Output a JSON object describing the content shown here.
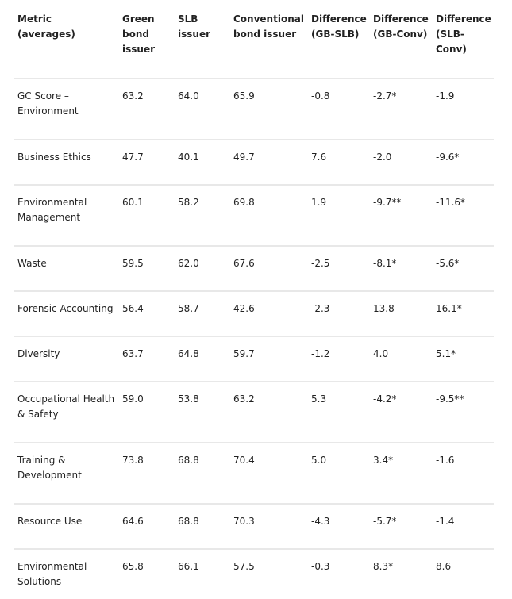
{
  "table": {
    "header": [
      "Metric (averages)",
      "Green bond issuer",
      "SLB issuer",
      "Conventional bond issuer",
      "Difference (GB-SLB)",
      "Difference (GB-Conv)",
      "Difference (SLB-Conv)"
    ],
    "rows": [
      [
        "GC Score – Environment",
        "63.2",
        "64.0",
        "65.9",
        "-0.8",
        "-2.7*",
        "-1.9"
      ],
      [
        "Business Ethics",
        "47.7",
        "40.1",
        "49.7",
        "7.6",
        "-2.0",
        "-9.6*"
      ],
      [
        "Environmental Management",
        "60.1",
        "58.2",
        "69.8",
        "1.9",
        "-9.7**",
        "-11.6*"
      ],
      [
        "Waste",
        "59.5",
        "62.0",
        "67.6",
        "-2.5",
        "-8.1*",
        "-5.6*"
      ],
      [
        "Forensic Accounting",
        "56.4",
        "58.7",
        "42.6",
        "-2.3",
        "13.8",
        "16.1*"
      ],
      [
        "Diversity",
        "63.7",
        "64.8",
        "59.7",
        "-1.2",
        "4.0",
        "5.1*"
      ],
      [
        "Occupational Health & Safety",
        "59.0",
        "53.8",
        "63.2",
        "5.3",
        "-4.2*",
        "-9.5**"
      ],
      [
        "Training & Development",
        "73.8",
        "68.8",
        "70.4",
        "5.0",
        "3.4*",
        "-1.6"
      ],
      [
        "Resource Use",
        "64.6",
        "68.8",
        "70.3",
        "-4.3",
        "-5.7*",
        "-1.4"
      ],
      [
        "Environmental Solutions",
        "65.8",
        "66.1",
        "57.5",
        "-0.3",
        "8.3*",
        "8.6"
      ]
    ]
  }
}
